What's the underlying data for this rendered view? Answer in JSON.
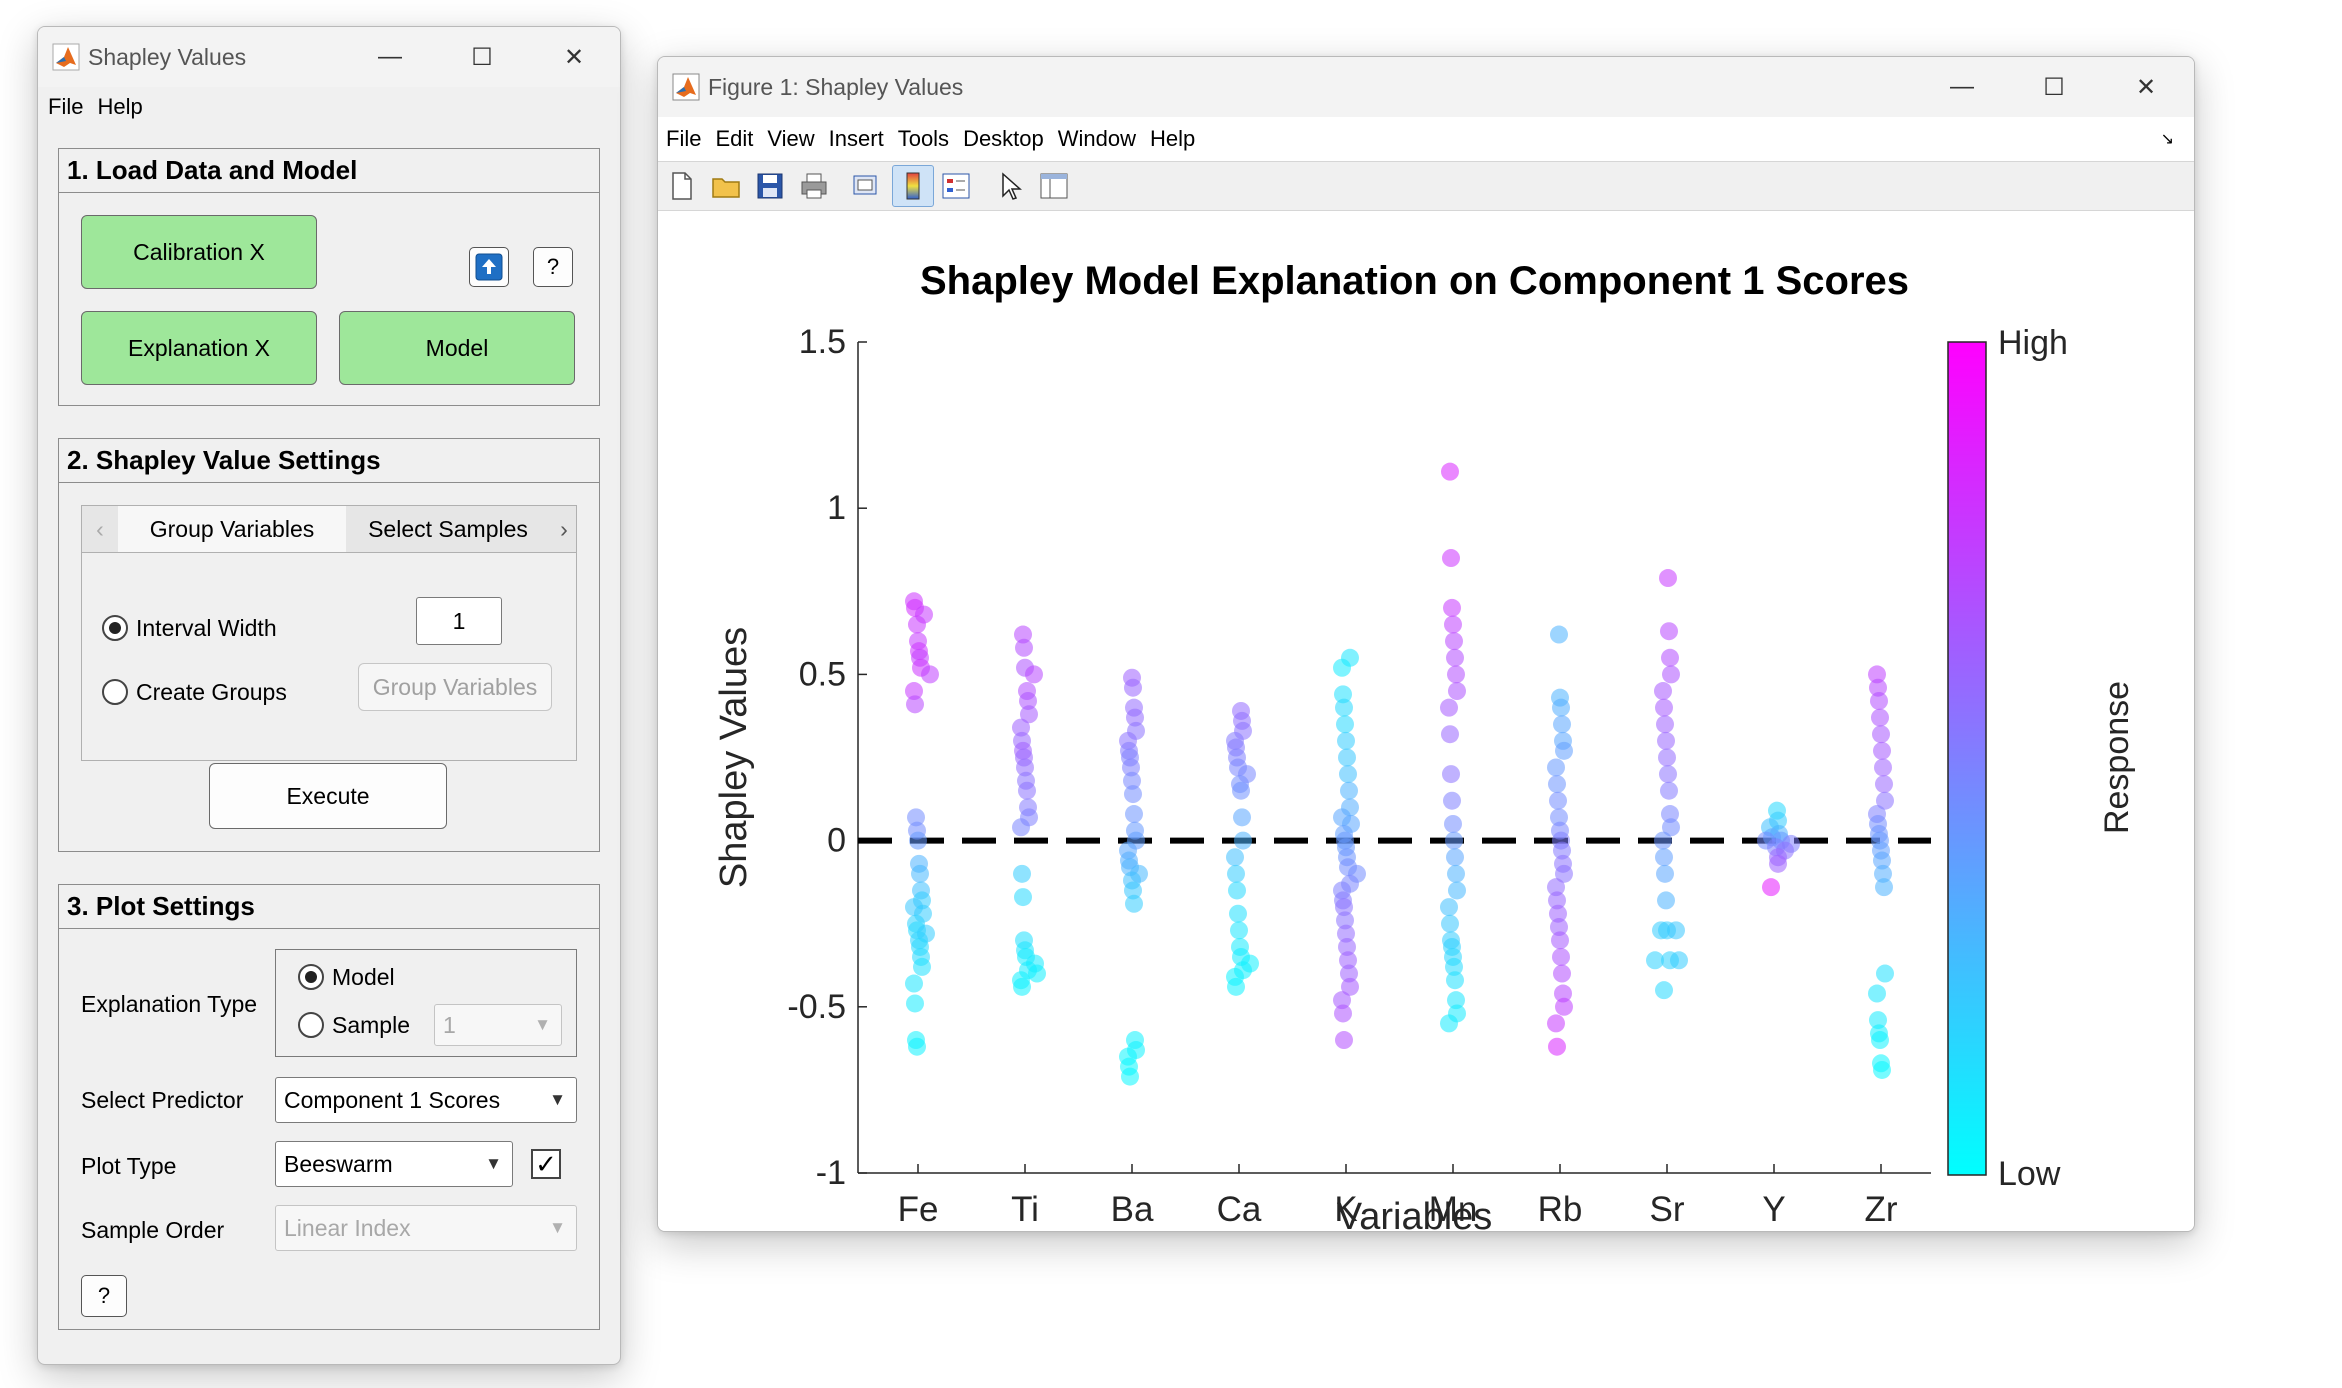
{
  "app": {
    "title": "Shapley Values",
    "menu": [
      "File",
      "Help"
    ],
    "load": {
      "title": "1. Load Data and Model",
      "calibration": "Calibration X",
      "explanation": "Explanation X",
      "model": "Model",
      "upload_icon": "upload-icon",
      "help": "?"
    },
    "settings": {
      "title": "2. Shapley Value Settings",
      "tabs": [
        "Group Variables",
        "Select Samples"
      ],
      "interval_label": "Interval Width",
      "interval_value": "1",
      "create_groups_label": "Create Groups",
      "group_variables_button": "Group Variables",
      "execute": "Execute"
    },
    "plot": {
      "title": "3. Plot Settings",
      "explanation_type_label": "Explanation Type",
      "model_option": "Model",
      "sample_option": "Sample",
      "sample_value": "1",
      "predictor_label": "Select Predictor",
      "predictor_value": "Component 1 Scores",
      "plot_type_label": "Plot Type",
      "plot_type_value": "Beeswarm",
      "plot_type_checked": true,
      "sample_order_label": "Sample Order",
      "sample_order_value": "Linear Index",
      "help": "?"
    }
  },
  "figure": {
    "title": "Figure 1: Shapley Values",
    "menu": [
      "File",
      "Edit",
      "View",
      "Insert",
      "Tools",
      "Desktop",
      "Window",
      "Help"
    ],
    "toolbar_icons": [
      "new-file-icon",
      "open-folder-icon",
      "save-icon",
      "print-icon",
      "print-preview-icon",
      "colorbar-icon",
      "legend-icon",
      "pointer-icon",
      "property-inspector-icon"
    ]
  },
  "chart_data": {
    "type": "scatter",
    "subtype": "beeswarm",
    "title": "Shapley Model Explanation on Component 1 Scores",
    "xlabel": "Variables",
    "ylabel": "Shapley Values",
    "categories": [
      "Fe",
      "Ti",
      "Ba",
      "Ca",
      "K",
      "Mn",
      "Rb",
      "Sr",
      "Y",
      "Zr"
    ],
    "ylim": [
      -1,
      1.5
    ],
    "yticks": [
      -1,
      -0.5,
      0,
      0.5,
      1,
      1.5
    ],
    "ytick_labels": [
      "-1",
      "-0.5",
      "0",
      "0.5",
      "1",
      "1.5"
    ],
    "reference_line": 0,
    "colorbar": {
      "label": "Response",
      "high_label": "High",
      "low_label": "Low",
      "low_color": "#00ffff",
      "high_color": "#ff00ff"
    },
    "series": [
      {
        "category": "Fe",
        "points": [
          [
            0.72,
            0.8
          ],
          [
            0.7,
            0.82
          ],
          [
            0.68,
            0.78
          ],
          [
            0.65,
            0.79
          ],
          [
            0.6,
            0.77
          ],
          [
            0.57,
            0.8
          ],
          [
            0.55,
            0.76
          ],
          [
            0.52,
            0.8
          ],
          [
            0.5,
            0.75
          ],
          [
            0.45,
            0.78
          ],
          [
            0.41,
            0.72
          ],
          [
            0.07,
            0.45
          ],
          [
            0.03,
            0.45
          ],
          [
            0.0,
            0.4
          ],
          [
            -0.07,
            0.3
          ],
          [
            -0.1,
            0.28
          ],
          [
            -0.15,
            0.25
          ],
          [
            -0.18,
            0.2
          ],
          [
            -0.2,
            0.22
          ],
          [
            -0.22,
            0.2
          ],
          [
            -0.25,
            0.18
          ],
          [
            -0.27,
            0.15
          ],
          [
            -0.28,
            0.2
          ],
          [
            -0.3,
            0.18
          ],
          [
            -0.32,
            0.15
          ],
          [
            -0.35,
            0.15
          ],
          [
            -0.38,
            0.12
          ],
          [
            -0.43,
            0.1
          ],
          [
            -0.49,
            0.08
          ],
          [
            -0.6,
            0.05
          ],
          [
            -0.62,
            0.05
          ]
        ]
      },
      {
        "category": "Ti",
        "points": [
          [
            0.62,
            0.72
          ],
          [
            0.58,
            0.7
          ],
          [
            0.52,
            0.68
          ],
          [
            0.5,
            0.72
          ],
          [
            0.45,
            0.7
          ],
          [
            0.42,
            0.68
          ],
          [
            0.38,
            0.65
          ],
          [
            0.34,
            0.62
          ],
          [
            0.3,
            0.6
          ],
          [
            0.27,
            0.63
          ],
          [
            0.25,
            0.6
          ],
          [
            0.22,
            0.58
          ],
          [
            0.18,
            0.55
          ],
          [
            0.15,
            0.55
          ],
          [
            0.1,
            0.52
          ],
          [
            0.07,
            0.5
          ],
          [
            0.04,
            0.48
          ],
          [
            -0.1,
            0.2
          ],
          [
            -0.17,
            0.15
          ],
          [
            -0.3,
            0.12
          ],
          [
            -0.33,
            0.1
          ],
          [
            -0.35,
            0.08
          ],
          [
            -0.37,
            0.08
          ],
          [
            -0.39,
            0.07
          ],
          [
            -0.4,
            0.06
          ],
          [
            -0.42,
            0.06
          ],
          [
            -0.44,
            0.05
          ]
        ]
      },
      {
        "category": "Ba",
        "points": [
          [
            0.49,
            0.62
          ],
          [
            0.46,
            0.6
          ],
          [
            0.4,
            0.58
          ],
          [
            0.37,
            0.58
          ],
          [
            0.33,
            0.55
          ],
          [
            0.3,
            0.55
          ],
          [
            0.27,
            0.52
          ],
          [
            0.25,
            0.5
          ],
          [
            0.22,
            0.5
          ],
          [
            0.18,
            0.47
          ],
          [
            0.14,
            0.45
          ],
          [
            0.08,
            0.42
          ],
          [
            0.03,
            0.4
          ],
          [
            0.0,
            0.38
          ],
          [
            -0.03,
            0.35
          ],
          [
            -0.06,
            0.32
          ],
          [
            -0.08,
            0.3
          ],
          [
            -0.1,
            0.28
          ],
          [
            -0.12,
            0.25
          ],
          [
            -0.15,
            0.22
          ],
          [
            -0.19,
            0.2
          ],
          [
            -0.6,
            0.05
          ],
          [
            -0.63,
            0.05
          ],
          [
            -0.65,
            0.04
          ],
          [
            -0.68,
            0.03
          ],
          [
            -0.71,
            0.03
          ]
        ]
      },
      {
        "category": "Ca",
        "points": [
          [
            0.39,
            0.58
          ],
          [
            0.36,
            0.56
          ],
          [
            0.33,
            0.55
          ],
          [
            0.3,
            0.52
          ],
          [
            0.28,
            0.52
          ],
          [
            0.25,
            0.5
          ],
          [
            0.22,
            0.48
          ],
          [
            0.2,
            0.47
          ],
          [
            0.17,
            0.45
          ],
          [
            0.15,
            0.44
          ],
          [
            0.07,
            0.35
          ],
          [
            0.0,
            0.3
          ],
          [
            -0.05,
            0.25
          ],
          [
            -0.1,
            0.2
          ],
          [
            -0.15,
            0.15
          ],
          [
            -0.22,
            0.12
          ],
          [
            -0.27,
            0.1
          ],
          [
            -0.32,
            0.08
          ],
          [
            -0.35,
            0.07
          ],
          [
            -0.37,
            0.06
          ],
          [
            -0.39,
            0.06
          ],
          [
            -0.41,
            0.05
          ],
          [
            -0.44,
            0.05
          ]
        ]
      },
      {
        "category": "K",
        "points": [
          [
            0.55,
            0.1
          ],
          [
            0.52,
            0.08
          ],
          [
            0.44,
            0.12
          ],
          [
            0.4,
            0.15
          ],
          [
            0.35,
            0.15
          ],
          [
            0.3,
            0.2
          ],
          [
            0.25,
            0.22
          ],
          [
            0.2,
            0.25
          ],
          [
            0.15,
            0.3
          ],
          [
            0.1,
            0.32
          ],
          [
            0.07,
            0.35
          ],
          [
            0.05,
            0.35
          ],
          [
            0.02,
            0.38
          ],
          [
            0.0,
            0.4
          ],
          [
            -0.02,
            0.4
          ],
          [
            -0.05,
            0.42
          ],
          [
            -0.08,
            0.45
          ],
          [
            -0.1,
            0.45
          ],
          [
            -0.13,
            0.48
          ],
          [
            -0.15,
            0.5
          ],
          [
            -0.18,
            0.52
          ],
          [
            -0.2,
            0.55
          ],
          [
            -0.24,
            0.55
          ],
          [
            -0.28,
            0.58
          ],
          [
            -0.32,
            0.6
          ],
          [
            -0.36,
            0.62
          ],
          [
            -0.4,
            0.62
          ],
          [
            -0.44,
            0.65
          ],
          [
            -0.48,
            0.65
          ],
          [
            -0.52,
            0.68
          ],
          [
            -0.6,
            0.7
          ]
        ]
      },
      {
        "category": "Mn",
        "points": [
          [
            1.11,
            0.85
          ],
          [
            0.85,
            0.8
          ],
          [
            0.7,
            0.78
          ],
          [
            0.65,
            0.75
          ],
          [
            0.6,
            0.72
          ],
          [
            0.55,
            0.7
          ],
          [
            0.5,
            0.7
          ],
          [
            0.45,
            0.68
          ],
          [
            0.4,
            0.65
          ],
          [
            0.32,
            0.6
          ],
          [
            0.2,
            0.55
          ],
          [
            0.12,
            0.5
          ],
          [
            0.05,
            0.45
          ],
          [
            0.0,
            0.4
          ],
          [
            -0.05,
            0.35
          ],
          [
            -0.1,
            0.3
          ],
          [
            -0.15,
            0.28
          ],
          [
            -0.2,
            0.25
          ],
          [
            -0.25,
            0.22
          ],
          [
            -0.3,
            0.2
          ],
          [
            -0.32,
            0.18
          ],
          [
            -0.35,
            0.16
          ],
          [
            -0.38,
            0.14
          ],
          [
            -0.42,
            0.12
          ],
          [
            -0.48,
            0.1
          ],
          [
            -0.52,
            0.08
          ],
          [
            -0.55,
            0.08
          ]
        ]
      },
      {
        "category": "Rb",
        "points": [
          [
            0.62,
            0.3
          ],
          [
            0.43,
            0.3
          ],
          [
            0.4,
            0.32
          ],
          [
            0.35,
            0.35
          ],
          [
            0.3,
            0.35
          ],
          [
            0.27,
            0.38
          ],
          [
            0.22,
            0.4
          ],
          [
            0.17,
            0.42
          ],
          [
            0.12,
            0.45
          ],
          [
            0.07,
            0.45
          ],
          [
            0.03,
            0.48
          ],
          [
            0.0,
            0.5
          ],
          [
            -0.03,
            0.52
          ],
          [
            -0.07,
            0.55
          ],
          [
            -0.1,
            0.55
          ],
          [
            -0.14,
            0.58
          ],
          [
            -0.18,
            0.6
          ],
          [
            -0.22,
            0.62
          ],
          [
            -0.26,
            0.62
          ],
          [
            -0.3,
            0.65
          ],
          [
            -0.35,
            0.68
          ],
          [
            -0.4,
            0.7
          ],
          [
            -0.46,
            0.72
          ],
          [
            -0.5,
            0.75
          ],
          [
            -0.55,
            0.78
          ],
          [
            -0.62,
            0.85
          ]
        ]
      },
      {
        "category": "Sr",
        "points": [
          [
            0.79,
            0.78
          ],
          [
            0.63,
            0.72
          ],
          [
            0.55,
            0.7
          ],
          [
            0.5,
            0.68
          ],
          [
            0.45,
            0.66
          ],
          [
            0.4,
            0.65
          ],
          [
            0.35,
            0.62
          ],
          [
            0.3,
            0.6
          ],
          [
            0.25,
            0.58
          ],
          [
            0.2,
            0.55
          ],
          [
            0.15,
            0.52
          ],
          [
            0.08,
            0.48
          ],
          [
            0.04,
            0.45
          ],
          [
            0.0,
            0.42
          ],
          [
            -0.05,
            0.38
          ],
          [
            -0.1,
            0.35
          ],
          [
            -0.18,
            0.3
          ],
          [
            -0.27,
            0.2
          ],
          [
            -0.27,
            0.22
          ],
          [
            -0.27,
            0.2
          ],
          [
            -0.36,
            0.18
          ],
          [
            -0.36,
            0.2
          ],
          [
            -0.36,
            0.18
          ],
          [
            -0.45,
            0.15
          ]
        ]
      },
      {
        "category": "Y",
        "points": [
          [
            0.09,
            0.15
          ],
          [
            0.06,
            0.2
          ],
          [
            0.04,
            0.25
          ],
          [
            0.02,
            0.3
          ],
          [
            0.01,
            0.35
          ],
          [
            0.0,
            0.4
          ],
          [
            0.0,
            0.45
          ],
          [
            -0.01,
            0.5
          ],
          [
            -0.02,
            0.5
          ],
          [
            -0.03,
            0.55
          ],
          [
            -0.05,
            0.6
          ],
          [
            -0.07,
            0.62
          ],
          [
            -0.14,
            0.9
          ]
        ]
      },
      {
        "category": "Zr",
        "points": [
          [
            0.5,
            0.75
          ],
          [
            0.46,
            0.72
          ],
          [
            0.42,
            0.7
          ],
          [
            0.37,
            0.68
          ],
          [
            0.32,
            0.66
          ],
          [
            0.27,
            0.65
          ],
          [
            0.22,
            0.62
          ],
          [
            0.17,
            0.6
          ],
          [
            0.12,
            0.55
          ],
          [
            0.08,
            0.5
          ],
          [
            0.05,
            0.45
          ],
          [
            0.02,
            0.42
          ],
          [
            0.0,
            0.4
          ],
          [
            -0.03,
            0.38
          ],
          [
            -0.06,
            0.35
          ],
          [
            -0.1,
            0.32
          ],
          [
            -0.14,
            0.3
          ],
          [
            -0.4,
            0.12
          ],
          [
            -0.46,
            0.1
          ],
          [
            -0.54,
            0.08
          ],
          [
            -0.58,
            0.06
          ],
          [
            -0.6,
            0.05
          ],
          [
            -0.67,
            0.04
          ],
          [
            -0.69,
            0.03
          ]
        ]
      }
    ]
  }
}
